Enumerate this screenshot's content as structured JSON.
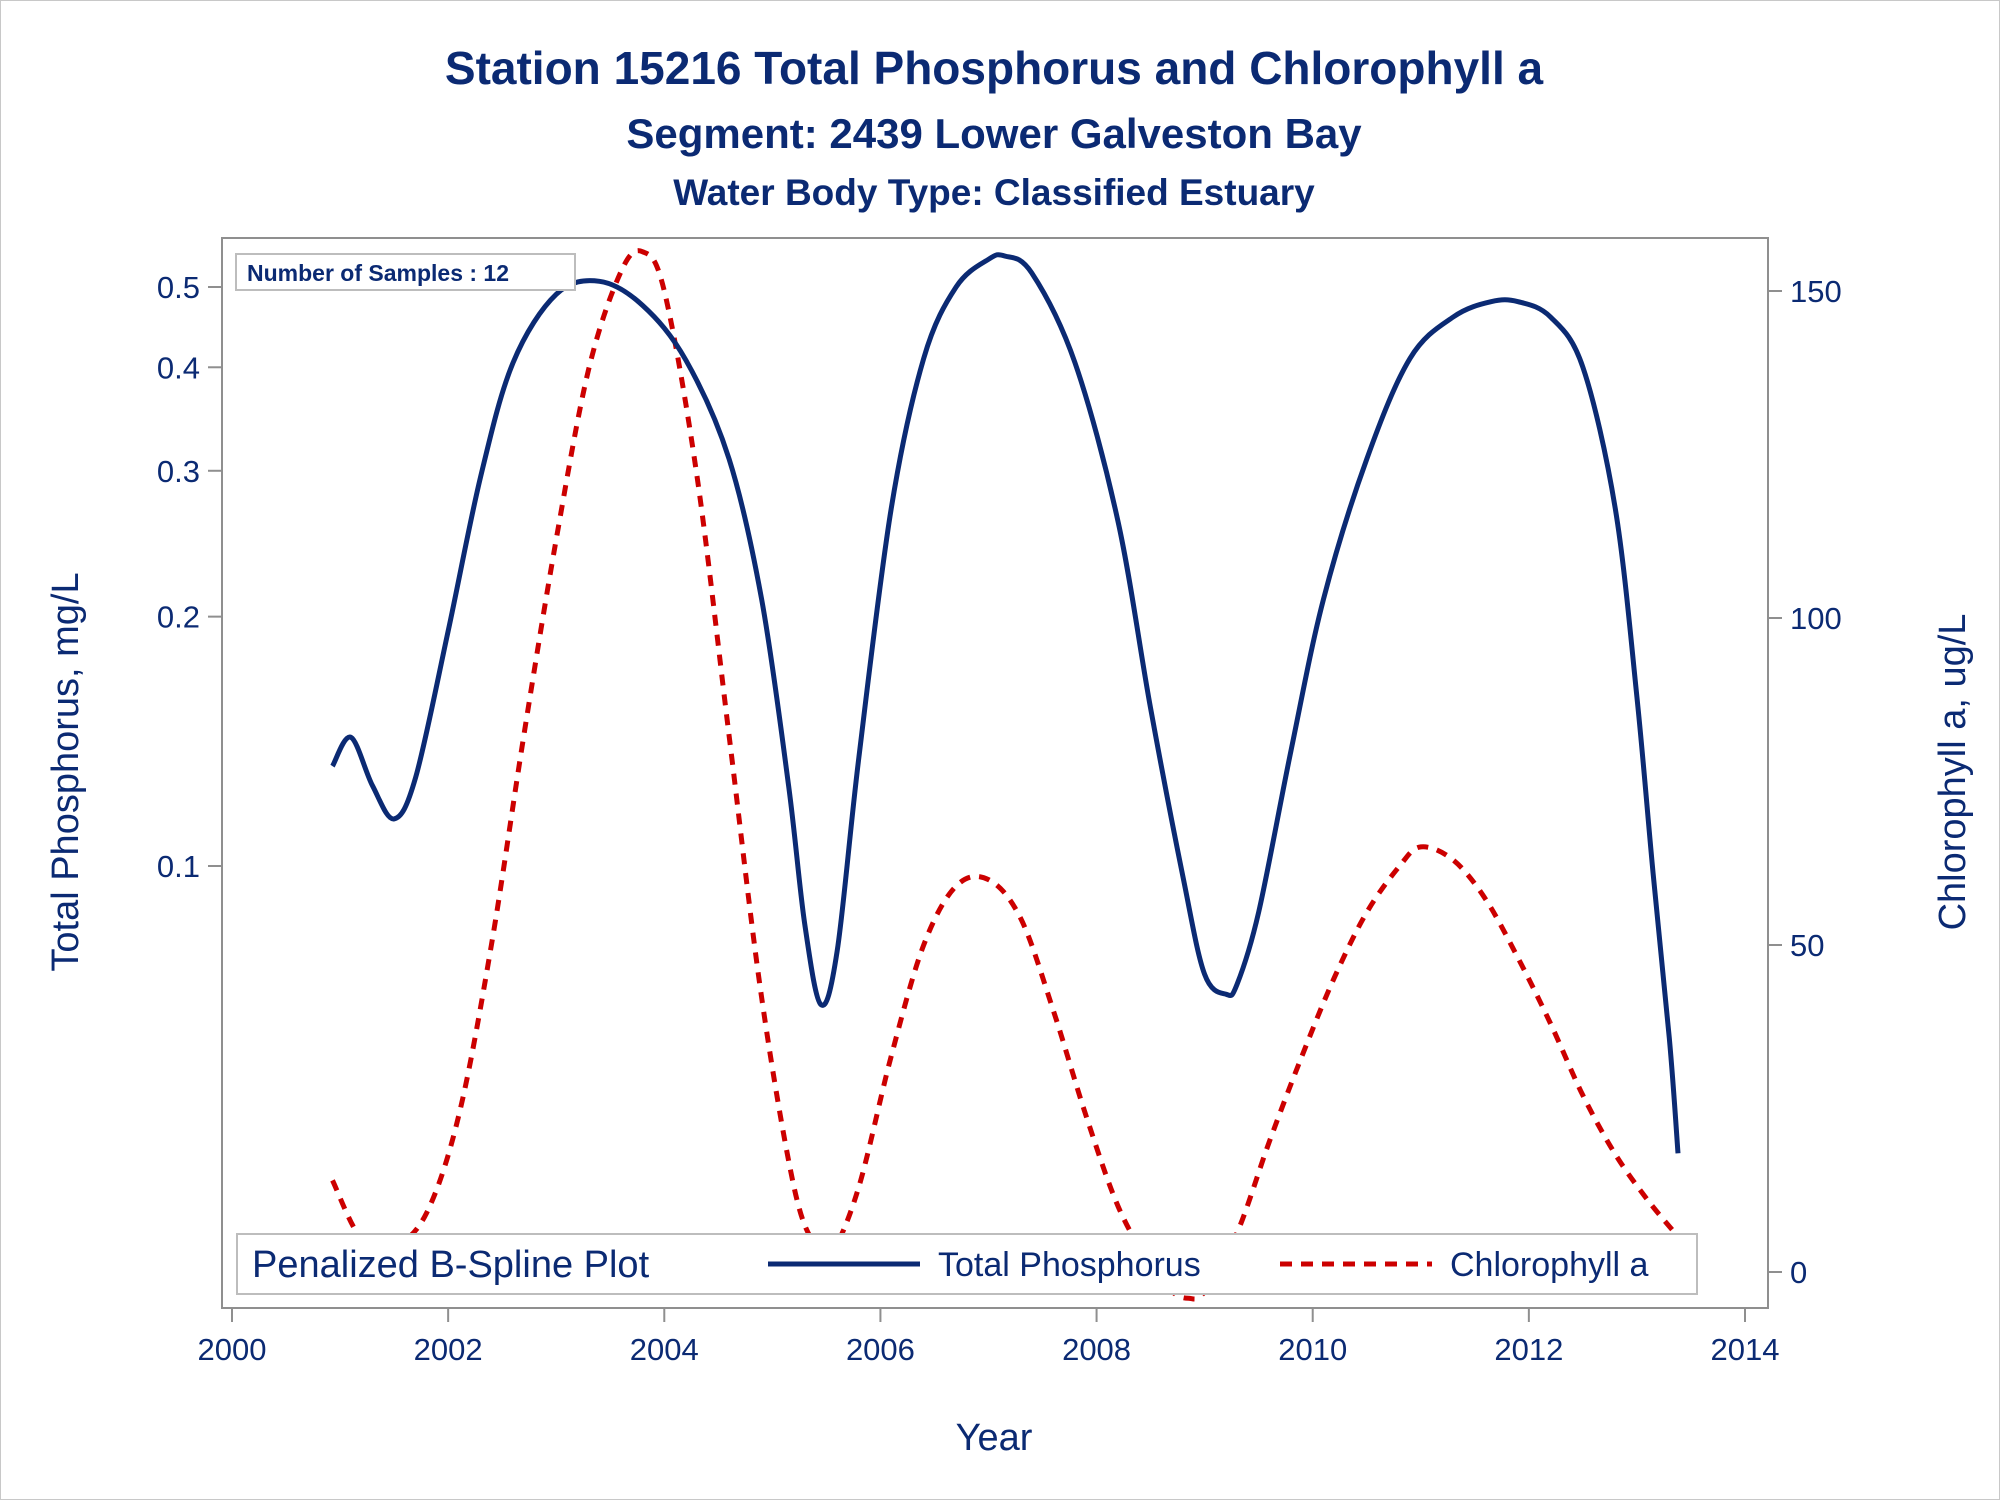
{
  "chart_data": {
    "type": "line",
    "title": "Station 15216  Total Phosphorus and Chlorophyll a",
    "subtitle": "Segment: 2439  Lower Galveston Bay",
    "subtitle2": "Water Body Type: Classified Estuary",
    "xlabel": "Year",
    "ylabel_left": "Total Phosphorus, mg/L",
    "ylabel_right": "Chlorophyll a, ug/L",
    "y_left_scale": "log",
    "y_left_ticks": [
      0.1,
      0.2,
      0.3,
      0.4,
      0.5
    ],
    "y_left_tick_labels": [
      "0.1",
      "0.2",
      "0.3",
      "0.4",
      "0.5"
    ],
    "y_right_ticks": [
      0,
      50,
      100,
      150
    ],
    "y_right_tick_labels": [
      "0",
      "50",
      "100",
      "150"
    ],
    "x_ticks": [
      2000,
      2002,
      2004,
      2006,
      2008,
      2010,
      2012,
      2014
    ],
    "x_tick_labels": [
      "2000",
      "2002",
      "2004",
      "2006",
      "2008",
      "2010",
      "2012",
      "2014"
    ],
    "xlim": [
      2000,
      2014
    ],
    "grid": false,
    "inset": "Number of Samples : 12",
    "legend": {
      "title": "Penalized B-Spline Plot",
      "placement": "bottom-inside",
      "entries": [
        "Total Phosphorus",
        "Chlorophyll a"
      ]
    },
    "series": [
      {
        "name": "Total Phosphorus",
        "axis": "left",
        "color": "#0b2a73",
        "dash": "solid",
        "x": [
          2000.93,
          2001.1,
          2001.3,
          2001.5,
          2001.7,
          2002.0,
          2002.3,
          2002.6,
          2003.0,
          2003.4,
          2003.8,
          2004.2,
          2004.6,
          2004.9,
          2005.15,
          2005.3,
          2005.45,
          2005.6,
          2005.8,
          2006.1,
          2006.4,
          2006.7,
          2007.0,
          2007.15,
          2007.4,
          2007.8,
          2008.2,
          2008.5,
          2008.8,
          2009.0,
          2009.2,
          2009.3,
          2009.5,
          2009.8,
          2010.1,
          2010.5,
          2010.9,
          2011.3,
          2011.65,
          2011.9,
          2012.2,
          2012.5,
          2012.8,
          2013.0,
          2013.15,
          2013.3,
          2013.38
        ],
        "y": [
          0.132,
          0.143,
          0.125,
          0.114,
          0.128,
          0.192,
          0.295,
          0.405,
          0.49,
          0.508,
          0.475,
          0.408,
          0.31,
          0.21,
          0.125,
          0.085,
          0.068,
          0.079,
          0.135,
          0.27,
          0.41,
          0.5,
          0.54,
          0.545,
          0.52,
          0.405,
          0.26,
          0.155,
          0.097,
          0.074,
          0.07,
          0.072,
          0.088,
          0.138,
          0.21,
          0.31,
          0.41,
          0.46,
          0.48,
          0.48,
          0.46,
          0.4,
          0.27,
          0.16,
          0.098,
          0.062,
          0.045
        ]
      },
      {
        "name": "Chlorophyll a",
        "axis": "right",
        "color": "#cc0000",
        "dash": "dashed",
        "x": [
          2000.93,
          2001.2,
          2001.5,
          2001.8,
          2002.1,
          2002.4,
          2002.7,
          2003.0,
          2003.3,
          2003.6,
          2003.8,
          2004.0,
          2004.3,
          2004.6,
          2004.9,
          2005.2,
          2005.4,
          2005.55,
          2005.8,
          2006.1,
          2006.4,
          2006.7,
          2007.0,
          2007.3,
          2007.6,
          2007.9,
          2008.2,
          2008.5,
          2008.7,
          2008.85,
          2009.0,
          2009.3,
          2009.6,
          2009.9,
          2010.2,
          2010.5,
          2010.8,
          2011.0,
          2011.3,
          2011.6,
          2011.9,
          2012.2,
          2012.5,
          2012.8,
          2013.1,
          2013.35
        ],
        "y": [
          14,
          5,
          4,
          9,
          24,
          50,
          82,
          112,
          138,
          153,
          156,
          150,
          122,
          82,
          42,
          13,
          4,
          3,
          13,
          33,
          50,
          59,
          60,
          54,
          40,
          24,
          10,
          1,
          -3,
          -4,
          -3,
          6,
          20,
          33,
          45,
          55,
          62,
          65,
          63,
          57,
          48,
          38,
          27,
          18,
          11,
          6
        ]
      }
    ]
  }
}
